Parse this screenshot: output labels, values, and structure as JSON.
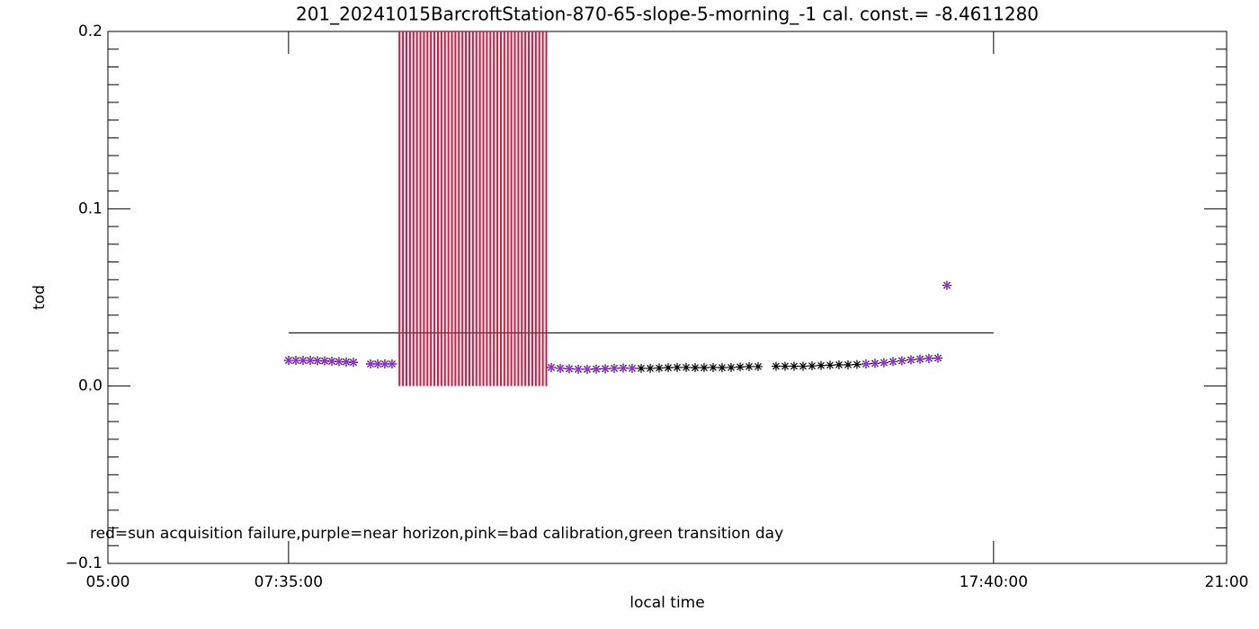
{
  "chart_data": {
    "type": "scatter",
    "title": "201_20241015BarcroftStation-870-65-slope-5-morning_-1 cal. const.= -8.4611280",
    "x_label": "local time",
    "y_label": "tod",
    "annotation": "red=sun acquisition failure,purple=near horizon,pink=bad calibration,green transition day",
    "xlim": [
      5,
      21
    ],
    "xticks": [
      {
        "value": 5,
        "label": "05:00"
      },
      {
        "value": 7.5833,
        "label": "07:35:00"
      },
      {
        "value": 17.6667,
        "label": "17:40:00"
      },
      {
        "value": 21,
        "label": "21:00"
      }
    ],
    "ylim": [
      -0.1,
      0.2
    ],
    "yticks": [
      {
        "value": -0.1,
        "label": "−0.1"
      },
      {
        "value": 0.0,
        "label": "0.0"
      },
      {
        "value": 0.1,
        "label": "0.1"
      },
      {
        "value": 0.2,
        "label": "0.2"
      }
    ],
    "y_minor_per_major": 10,
    "reference_line": {
      "value": 0.03,
      "x": [
        7.5833,
        17.6667
      ],
      "color": "#000000"
    },
    "bars": {
      "color": "#dc143c",
      "x": [
        9.17,
        9.22,
        9.27,
        9.32,
        9.37,
        9.42,
        9.47,
        9.52,
        9.57,
        9.62,
        9.67,
        9.72,
        9.77,
        9.82,
        9.87,
        9.92,
        9.97,
        10.02,
        10.07,
        10.12,
        10.17,
        10.22,
        10.27,
        10.32,
        10.37,
        10.42,
        10.47,
        10.52,
        10.57,
        10.62,
        10.67,
        10.72,
        10.77,
        10.82,
        10.87,
        10.92,
        10.97,
        11.02,
        11.07,
        11.12,
        11.17,
        11.22,
        11.27
      ],
      "values": [
        0.2,
        0.2,
        0.2,
        0.2,
        0.2,
        0.2,
        0.2,
        0.2,
        0.2,
        0.2,
        0.2,
        0.2,
        0.2,
        0.2,
        0.2,
        0.2,
        0.2,
        0.2,
        0.2,
        0.2,
        0.2,
        0.2,
        0.2,
        0.2,
        0.2,
        0.2,
        0.2,
        0.2,
        0.2,
        0.2,
        0.2,
        0.2,
        0.2,
        0.2,
        0.2,
        0.2,
        0.2,
        0.2,
        0.2,
        0.2,
        0.2,
        0.2,
        0.2
      ]
    },
    "series": [
      {
        "color": "#000000",
        "x": [
          7.585,
          7.688,
          7.791,
          7.894,
          7.997,
          8.1,
          8.203,
          8.305,
          8.408,
          8.511,
          8.756,
          8.859,
          8.961,
          9.064,
          11.341,
          11.47,
          11.598,
          11.727,
          11.855,
          11.984,
          12.113,
          12.241,
          12.37,
          12.498,
          12.627,
          12.756,
          12.884,
          13.013,
          13.141,
          13.27,
          13.399,
          13.527,
          13.656,
          13.784,
          13.913,
          14.042,
          14.17,
          14.299,
          14.556,
          14.685,
          14.813,
          14.942,
          15.07,
          15.199,
          15.328,
          15.456,
          15.585,
          15.713,
          15.842,
          15.971,
          16.099,
          16.228,
          16.356,
          16.485,
          16.614,
          16.742,
          16.871,
          17.0
        ],
        "values": [
          0.0145,
          0.0145,
          0.0145,
          0.0145,
          0.0143,
          0.0142,
          0.014,
          0.0138,
          0.0136,
          0.0134,
          0.0125,
          0.0125,
          0.0125,
          0.0125,
          0.0105,
          0.01,
          0.0098,
          0.0095,
          0.0095,
          0.0096,
          0.0098,
          0.01,
          0.0102,
          0.01,
          0.01,
          0.01,
          0.0102,
          0.0104,
          0.0105,
          0.0105,
          0.0104,
          0.0104,
          0.0105,
          0.0104,
          0.0105,
          0.0108,
          0.011,
          0.011,
          0.0112,
          0.0112,
          0.0112,
          0.0112,
          0.0114,
          0.0116,
          0.0118,
          0.012,
          0.012,
          0.0122,
          0.0125,
          0.0128,
          0.0132,
          0.0138,
          0.0143,
          0.0148,
          0.0152,
          0.0156,
          0.0158,
          0.0568
        ]
      },
      {
        "color": "#a020f0",
        "x": [
          7.585,
          7.688,
          7.791,
          7.894,
          7.997,
          8.1,
          8.203,
          8.305,
          8.408,
          8.511,
          8.756,
          8.859,
          8.961,
          9.064,
          11.341,
          11.47,
          11.598,
          11.727,
          11.855,
          11.984,
          12.113,
          12.241,
          12.37,
          12.498,
          15.842,
          15.971,
          16.099,
          16.228,
          16.356,
          16.485,
          16.614,
          16.742,
          16.871,
          17.0
        ],
        "values": [
          0.0145,
          0.0145,
          0.0145,
          0.0145,
          0.0143,
          0.0142,
          0.014,
          0.0138,
          0.0136,
          0.0134,
          0.0125,
          0.0125,
          0.0125,
          0.0125,
          0.0105,
          0.01,
          0.0098,
          0.0095,
          0.0095,
          0.0096,
          0.0098,
          0.01,
          0.0102,
          0.01,
          0.0125,
          0.0128,
          0.0132,
          0.0138,
          0.0143,
          0.0148,
          0.0152,
          0.0156,
          0.0158,
          0.0568
        ]
      }
    ]
  }
}
